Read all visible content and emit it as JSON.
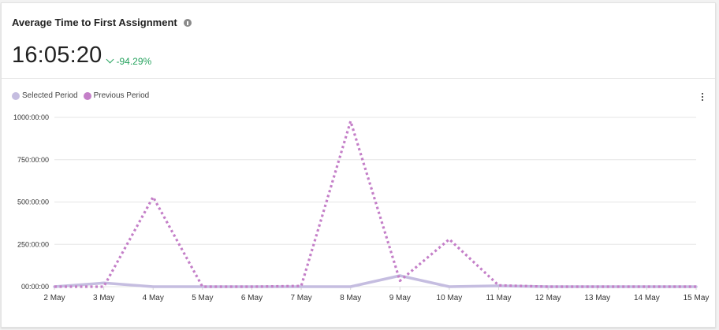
{
  "widget": {
    "title": "Average Time to First Assignment",
    "info_icon": "info-icon",
    "metric_value": "16:05:20",
    "delta_direction": "down",
    "delta_text": "-94.29%",
    "delta_color": "#27a35f",
    "menu_icon": "kebab-menu-icon"
  },
  "legend": [
    {
      "label": "Selected Period",
      "color": "#c5bde0"
    },
    {
      "label": "Previous Period",
      "color": "#c47fc8"
    }
  ],
  "chart_data": {
    "type": "line",
    "title": "Average Time to First Assignment",
    "xlabel": "",
    "ylabel": "",
    "categories": [
      "2 May",
      "3 May",
      "4 May",
      "5 May",
      "6 May",
      "7 May",
      "8 May",
      "9 May",
      "10 May",
      "11 May",
      "12 May",
      "13 May",
      "14 May",
      "15 May"
    ],
    "y_ticks": [
      "00:00:00",
      "250:00:00",
      "500:00:00",
      "750:00:00",
      "1000:00:00"
    ],
    "y_tick_values": [
      0,
      250,
      500,
      750,
      1000
    ],
    "ylim": [
      0,
      1000
    ],
    "y_unit": "hours",
    "grid": true,
    "legend_position": "top-left",
    "series": [
      {
        "name": "Selected Period",
        "style": "solid",
        "color": "#c5bde0",
        "values": [
          0,
          22,
          0,
          0,
          0,
          0,
          0,
          65,
          0,
          5,
          0,
          0,
          0,
          0
        ]
      },
      {
        "name": "Previous Period",
        "style": "dotted",
        "color": "#c47fc8",
        "values": [
          0,
          0,
          530,
          0,
          0,
          4,
          977,
          35,
          280,
          8,
          0,
          0,
          0,
          0
        ]
      }
    ]
  }
}
